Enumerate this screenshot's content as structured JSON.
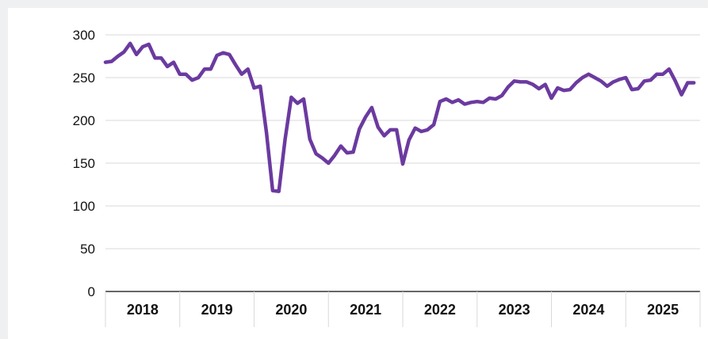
{
  "chart_data": {
    "type": "line",
    "title": "",
    "xlabel": "",
    "ylabel": "",
    "ylim": [
      0,
      300
    ],
    "xlim": [
      2018,
      2026
    ],
    "yticks": [
      0,
      50,
      100,
      150,
      200,
      250,
      300
    ],
    "categories": [
      "2018",
      "2019",
      "2020",
      "2021",
      "2022",
      "2023",
      "2024",
      "2025"
    ],
    "grid": true,
    "legend": "none",
    "colors": {
      "line": "#6b3aa0",
      "grid": "#d9d9d9",
      "axis": "#333333"
    },
    "series": [
      {
        "x": [
          2018.0,
          2018.083,
          2018.167,
          2018.25,
          2018.333,
          2018.417,
          2018.5,
          2018.583,
          2018.667,
          2018.75,
          2018.833,
          2018.917,
          2019.0,
          2019.083,
          2019.167,
          2019.25,
          2019.333,
          2019.417,
          2019.5,
          2019.583,
          2019.667,
          2019.75,
          2019.833,
          2019.917,
          2020.0,
          2020.083,
          2020.167,
          2020.25,
          2020.333,
          2020.417,
          2020.5,
          2020.583,
          2020.667,
          2020.75,
          2020.833,
          2020.917,
          2021.0,
          2021.083,
          2021.167,
          2021.25,
          2021.333,
          2021.417,
          2021.5,
          2021.583,
          2021.667,
          2021.75,
          2021.833,
          2021.917,
          2022.0,
          2022.083,
          2022.167,
          2022.25,
          2022.333,
          2022.417,
          2022.5,
          2022.583,
          2022.667,
          2022.75,
          2022.833,
          2022.917,
          2023.0,
          2023.083,
          2023.167,
          2023.25,
          2023.333,
          2023.417,
          2023.5,
          2023.583,
          2023.667,
          2023.75,
          2023.833,
          2023.917,
          2024.0,
          2024.083,
          2024.167,
          2024.25,
          2024.333,
          2024.417,
          2024.5,
          2024.583,
          2024.667,
          2024.75,
          2024.833,
          2024.917,
          2025.0,
          2025.083,
          2025.167,
          2025.25,
          2025.333,
          2025.417,
          2025.5,
          2025.583,
          2025.667,
          2025.75,
          2025.833,
          2025.917
        ],
        "values": [
          268,
          269,
          275,
          280,
          290,
          277,
          286,
          289,
          273,
          273,
          263,
          268,
          254,
          254,
          247,
          250,
          260,
          260,
          276,
          279,
          277,
          265,
          254,
          260,
          238,
          240,
          185,
          118,
          117,
          178,
          227,
          220,
          225,
          178,
          161,
          156,
          150,
          159,
          170,
          162,
          163,
          190,
          204,
          215,
          192,
          182,
          189,
          189,
          149,
          177,
          191,
          187,
          189,
          195,
          222,
          225,
          221,
          224,
          219,
          221,
          222,
          221,
          226,
          225,
          229,
          239,
          246,
          245,
          245,
          242,
          237,
          242,
          226,
          238,
          235,
          236,
          244,
          250,
          254,
          250,
          246,
          240,
          245,
          248,
          250,
          236,
          237,
          246,
          247,
          254,
          254,
          260,
          246,
          230,
          244,
          244
        ]
      }
    ]
  }
}
